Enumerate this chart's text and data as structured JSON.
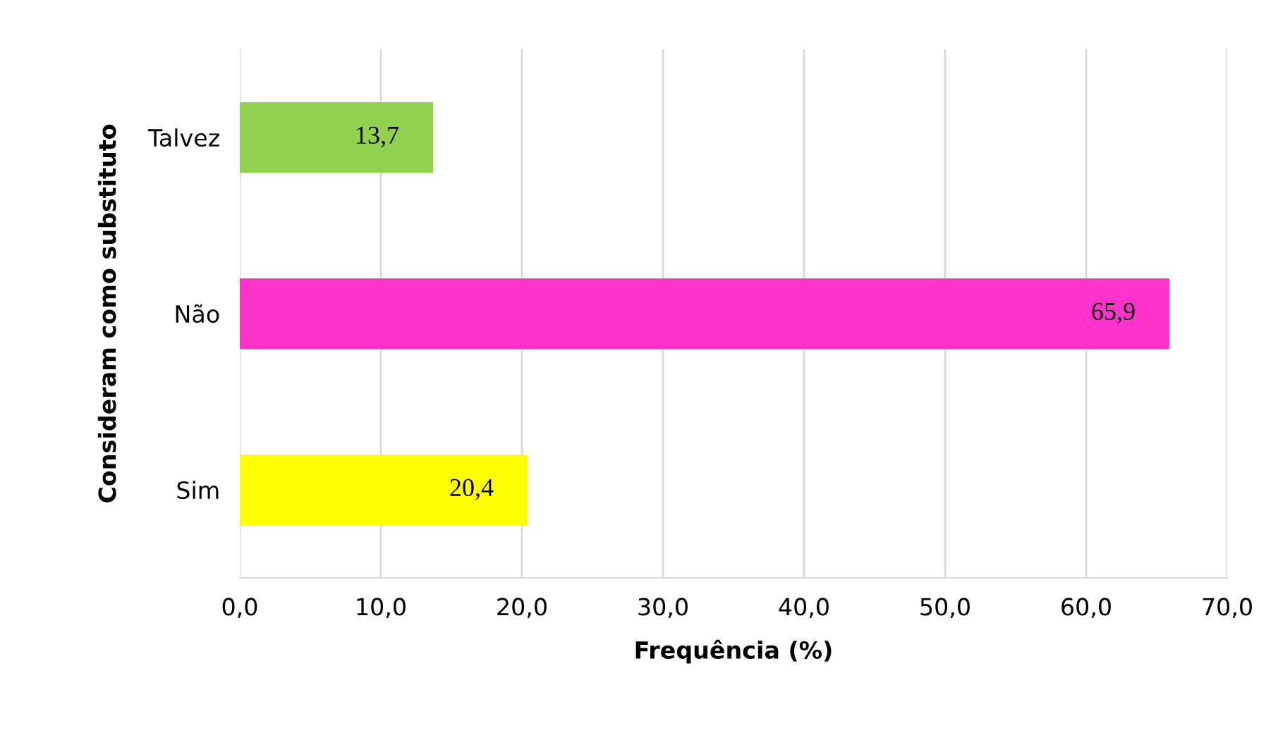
{
  "chart_data": {
    "type": "bar",
    "orientation": "horizontal",
    "categories": [
      "Talvez",
      "Não",
      "Sim"
    ],
    "values": [
      13.7,
      65.9,
      20.4
    ],
    "colors": [
      "#92d050",
      "#ff33cc",
      "#ffff00"
    ],
    "value_labels": [
      "13,7",
      "65,9",
      "20,4"
    ],
    "xlim": [
      0,
      70
    ],
    "xticks": [
      {
        "value": 0,
        "label": "0,0"
      },
      {
        "value": 10,
        "label": "10,0"
      },
      {
        "value": 20,
        "label": "20,0"
      },
      {
        "value": 30,
        "label": "30,0"
      },
      {
        "value": 40,
        "label": "40,0"
      },
      {
        "value": 50,
        "label": "50,0"
      },
      {
        "value": 60,
        "label": "60,0"
      },
      {
        "value": 70,
        "label": "70,0"
      }
    ],
    "xlabel": "Frequência (%)",
    "ylabel": "Consideram como substituto",
    "grid": "x",
    "legend": false
  }
}
